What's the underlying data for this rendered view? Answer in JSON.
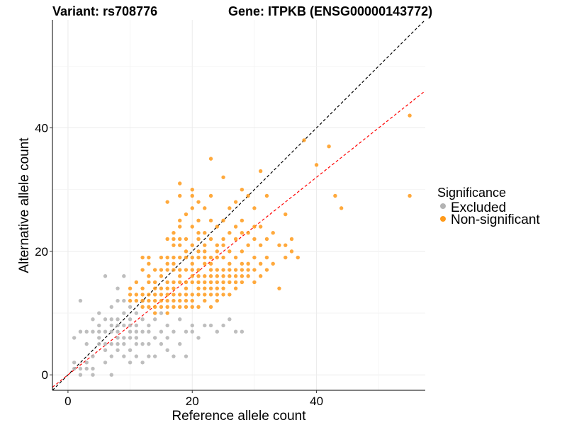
{
  "chart_data": {
    "type": "scatter",
    "title_left": "Variant: rs708776",
    "title_right": "Gene: ITPKB (ENSG00000143772)",
    "xlabel": "Reference allele count",
    "ylabel": "Alternative allele count",
    "xlim": [
      -2.5,
      57.5
    ],
    "ylim": [
      -2.5,
      57.5
    ],
    "x_ticks": [
      0,
      20,
      40
    ],
    "y_ticks": [
      0,
      20,
      40
    ],
    "grid": true,
    "legend": {
      "title": "Significance",
      "position": "right",
      "entries": [
        {
          "label": "Excluded",
          "color": "#b3b3b3"
        },
        {
          "label": "Non-significant",
          "color": "#ff9a1a"
        }
      ]
    },
    "reference_lines": [
      {
        "kind": "identity",
        "slope": 1,
        "intercept": 0,
        "color": "#000000",
        "style": "dashed"
      },
      {
        "kind": "fit",
        "slope": 0.8,
        "intercept": 0,
        "color": "#ff0000",
        "style": "dashed"
      }
    ],
    "series": [
      {
        "name": "Excluded",
        "color": "#b3b3b3",
        "points": [
          [
            1,
            2
          ],
          [
            1,
            1
          ],
          [
            1,
            6
          ],
          [
            2,
            0
          ],
          [
            2,
            1
          ],
          [
            2,
            7
          ],
          [
            2,
            12
          ],
          [
            3,
            1
          ],
          [
            3,
            2
          ],
          [
            3,
            5
          ],
          [
            3,
            7
          ],
          [
            4,
            0
          ],
          [
            4,
            1
          ],
          [
            4,
            3
          ],
          [
            4,
            7
          ],
          [
            4,
            9
          ],
          [
            5,
            5
          ],
          [
            5,
            6
          ],
          [
            5,
            7
          ],
          [
            5,
            8
          ],
          [
            5,
            10
          ],
          [
            6,
            2
          ],
          [
            6,
            4
          ],
          [
            6,
            5
          ],
          [
            6,
            7
          ],
          [
            6,
            9
          ],
          [
            6,
            16
          ],
          [
            7,
            0
          ],
          [
            7,
            3
          ],
          [
            7,
            5
          ],
          [
            7,
            7
          ],
          [
            7,
            8
          ],
          [
            7,
            9
          ],
          [
            7,
            11
          ],
          [
            8,
            4
          ],
          [
            8,
            5
          ],
          [
            8,
            6
          ],
          [
            8,
            7
          ],
          [
            8,
            8
          ],
          [
            8,
            9
          ],
          [
            8,
            12
          ],
          [
            8,
            14
          ],
          [
            9,
            3
          ],
          [
            9,
            5
          ],
          [
            9,
            6
          ],
          [
            9,
            8
          ],
          [
            9,
            10
          ],
          [
            9,
            12
          ],
          [
            9,
            16
          ],
          [
            10,
            2
          ],
          [
            10,
            4
          ],
          [
            10,
            6
          ],
          [
            10,
            7
          ],
          [
            10,
            8
          ],
          [
            10,
            9
          ],
          [
            10,
            11
          ],
          [
            11,
            3
          ],
          [
            11,
            5
          ],
          [
            11,
            6
          ],
          [
            11,
            7
          ],
          [
            11,
            8
          ],
          [
            11,
            10
          ],
          [
            12,
            2
          ],
          [
            12,
            5
          ],
          [
            12,
            7
          ],
          [
            12,
            9
          ],
          [
            12,
            12
          ],
          [
            13,
            3
          ],
          [
            13,
            5
          ],
          [
            13,
            7
          ],
          [
            13,
            8
          ],
          [
            14,
            3
          ],
          [
            14,
            6
          ],
          [
            14,
            9
          ],
          [
            15,
            5
          ],
          [
            15,
            7
          ],
          [
            15,
            10
          ],
          [
            16,
            4
          ],
          [
            16,
            6
          ],
          [
            16,
            8
          ],
          [
            17,
            3
          ],
          [
            17,
            7
          ],
          [
            18,
            5
          ],
          [
            18,
            9
          ],
          [
            19,
            3
          ],
          [
            19,
            7
          ],
          [
            20,
            7
          ],
          [
            20,
            8
          ],
          [
            21,
            6
          ],
          [
            22,
            8
          ],
          [
            23,
            8
          ],
          [
            24,
            7
          ],
          [
            25,
            8
          ],
          [
            26,
            9
          ],
          [
            27,
            7
          ],
          [
            28,
            7
          ]
        ]
      },
      {
        "name": "Non-significant",
        "color": "#ff9a1a",
        "points": [
          [
            10,
            12
          ],
          [
            10,
            13
          ],
          [
            10,
            14
          ],
          [
            11,
            12
          ],
          [
            11,
            13
          ],
          [
            11,
            15
          ],
          [
            12,
            11
          ],
          [
            12,
            12
          ],
          [
            12,
            13
          ],
          [
            12,
            14
          ],
          [
            12,
            17
          ],
          [
            12,
            19
          ],
          [
            13,
            11
          ],
          [
            13,
            12
          ],
          [
            13,
            13
          ],
          [
            13,
            15
          ],
          [
            13,
            16
          ],
          [
            13,
            18
          ],
          [
            13,
            19
          ],
          [
            14,
            10
          ],
          [
            14,
            11
          ],
          [
            14,
            12
          ],
          [
            14,
            13
          ],
          [
            14,
            14
          ],
          [
            14,
            15
          ],
          [
            14,
            17
          ],
          [
            15,
            11
          ],
          [
            15,
            12
          ],
          [
            15,
            13
          ],
          [
            15,
            14
          ],
          [
            15,
            16
          ],
          [
            15,
            17
          ],
          [
            15,
            19
          ],
          [
            16,
            10
          ],
          [
            16,
            11
          ],
          [
            16,
            12
          ],
          [
            16,
            13
          ],
          [
            16,
            14
          ],
          [
            16,
            15
          ],
          [
            16,
            17
          ],
          [
            16,
            18
          ],
          [
            16,
            19
          ],
          [
            16,
            22
          ],
          [
            16,
            28
          ],
          [
            17,
            11
          ],
          [
            17,
            12
          ],
          [
            17,
            13
          ],
          [
            17,
            14
          ],
          [
            17,
            15
          ],
          [
            17,
            17
          ],
          [
            17,
            18
          ],
          [
            17,
            19
          ],
          [
            17,
            21
          ],
          [
            17,
            22
          ],
          [
            17,
            23
          ],
          [
            18,
            11
          ],
          [
            18,
            12
          ],
          [
            18,
            13
          ],
          [
            18,
            15
          ],
          [
            18,
            16
          ],
          [
            18,
            17
          ],
          [
            18,
            19
          ],
          [
            18,
            21
          ],
          [
            18,
            22
          ],
          [
            18,
            24
          ],
          [
            18,
            25
          ],
          [
            18,
            29
          ],
          [
            18,
            31
          ],
          [
            19,
            11
          ],
          [
            19,
            12
          ],
          [
            19,
            13
          ],
          [
            19,
            14
          ],
          [
            19,
            15
          ],
          [
            19,
            17
          ],
          [
            19,
            19
          ],
          [
            19,
            20
          ],
          [
            19,
            22
          ],
          [
            19,
            26
          ],
          [
            20,
            11
          ],
          [
            20,
            12
          ],
          [
            20,
            13
          ],
          [
            20,
            15
          ],
          [
            20,
            16
          ],
          [
            20,
            17
          ],
          [
            20,
            18
          ],
          [
            20,
            19
          ],
          [
            20,
            21
          ],
          [
            20,
            24
          ],
          [
            20,
            27
          ],
          [
            20,
            29
          ],
          [
            20,
            30
          ],
          [
            21,
            11
          ],
          [
            21,
            13
          ],
          [
            21,
            14
          ],
          [
            21,
            15
          ],
          [
            21,
            16
          ],
          [
            21,
            17
          ],
          [
            21,
            19
          ],
          [
            21,
            20
          ],
          [
            21,
            22
          ],
          [
            21,
            23
          ],
          [
            21,
            25
          ],
          [
            21,
            28
          ],
          [
            22,
            12
          ],
          [
            22,
            13
          ],
          [
            22,
            14
          ],
          [
            22,
            15
          ],
          [
            22,
            16
          ],
          [
            22,
            18
          ],
          [
            22,
            19
          ],
          [
            22,
            20
          ],
          [
            22,
            21
          ],
          [
            22,
            23
          ],
          [
            22,
            27
          ],
          [
            23,
            11
          ],
          [
            23,
            13
          ],
          [
            23,
            14
          ],
          [
            23,
            15
          ],
          [
            23,
            16
          ],
          [
            23,
            17
          ],
          [
            23,
            18
          ],
          [
            23,
            19
          ],
          [
            23,
            22
          ],
          [
            23,
            25
          ],
          [
            23,
            29
          ],
          [
            23,
            35
          ],
          [
            24,
            12
          ],
          [
            24,
            13
          ],
          [
            24,
            14
          ],
          [
            24,
            15
          ],
          [
            24,
            16
          ],
          [
            24,
            17
          ],
          [
            24,
            19
          ],
          [
            24,
            20
          ],
          [
            24,
            21
          ],
          [
            24,
            24
          ],
          [
            25,
            13
          ],
          [
            25,
            14
          ],
          [
            25,
            15
          ],
          [
            25,
            16
          ],
          [
            25,
            17
          ],
          [
            25,
            19
          ],
          [
            25,
            21
          ],
          [
            25,
            22
          ],
          [
            25,
            25
          ],
          [
            25,
            32
          ],
          [
            26,
            13
          ],
          [
            26,
            15
          ],
          [
            26,
            16
          ],
          [
            26,
            17
          ],
          [
            26,
            18
          ],
          [
            26,
            20
          ],
          [
            26,
            23
          ],
          [
            26,
            27
          ],
          [
            27,
            14
          ],
          [
            27,
            15
          ],
          [
            27,
            16
          ],
          [
            27,
            17
          ],
          [
            27,
            19
          ],
          [
            27,
            22
          ],
          [
            27,
            24
          ],
          [
            27,
            28
          ],
          [
            28,
            15
          ],
          [
            28,
            16
          ],
          [
            28,
            17
          ],
          [
            28,
            18
          ],
          [
            28,
            20
          ],
          [
            28,
            23
          ],
          [
            28,
            25
          ],
          [
            28,
            30
          ],
          [
            29,
            16
          ],
          [
            29,
            17
          ],
          [
            29,
            18
          ],
          [
            29,
            21
          ],
          [
            29,
            23
          ],
          [
            29,
            29
          ],
          [
            30,
            15
          ],
          [
            30,
            17
          ],
          [
            30,
            19
          ],
          [
            30,
            22
          ],
          [
            30,
            24
          ],
          [
            30,
            27
          ],
          [
            31,
            16
          ],
          [
            31,
            18
          ],
          [
            31,
            21
          ],
          [
            31,
            24
          ],
          [
            31,
            33
          ],
          [
            32,
            17
          ],
          [
            32,
            19
          ],
          [
            32,
            22
          ],
          [
            32,
            29
          ],
          [
            33,
            18
          ],
          [
            33,
            23
          ],
          [
            34,
            14
          ],
          [
            34,
            21
          ],
          [
            35,
            21
          ],
          [
            35,
            26
          ],
          [
            35,
            19
          ],
          [
            36,
            20
          ],
          [
            36,
            22
          ],
          [
            37,
            19
          ],
          [
            38,
            38
          ],
          [
            40,
            34
          ],
          [
            42,
            37
          ],
          [
            43,
            29
          ],
          [
            44,
            27
          ],
          [
            55,
            42
          ],
          [
            55,
            29
          ]
        ]
      }
    ]
  }
}
